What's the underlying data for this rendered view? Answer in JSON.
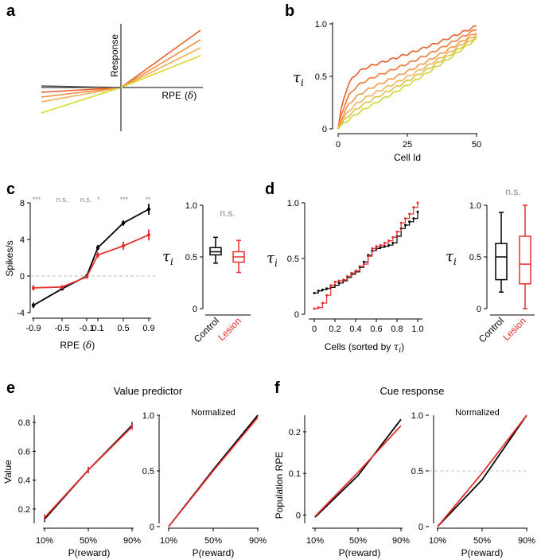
{
  "panels": {
    "a": {
      "letter": "a",
      "ylabel": "Response",
      "xlabel": "RPE",
      "xlabel_sym": "δ",
      "colors": [
        "#e8602c",
        "#f08b3a",
        "#f2ad55",
        "#d9d92e",
        "#555555"
      ]
    },
    "b": {
      "letter": "b",
      "ylabel_sym": "τ",
      "ylabel_sub": "i",
      "xlabel": "Cell Id",
      "xticks": [
        "0",
        "25",
        "50"
      ],
      "yticks": [
        "0",
        "0.5",
        "1.0"
      ],
      "colors": [
        "#e8602c",
        "#ee7a38",
        "#f29a4a",
        "#f2b45c",
        "#d9c446",
        "#cfd73a"
      ]
    },
    "c": {
      "letter": "c",
      "ylabel": "Spikes/s",
      "xlabel": "RPE",
      "xlabel_sym": "δ",
      "xticks": [
        "-0.9",
        "-0.5",
        "-0.1",
        "0.1",
        "0.5",
        "0.9"
      ],
      "yticks": [
        "-4",
        "0",
        "4",
        "8"
      ],
      "sig": [
        "***",
        "n.s.",
        "n.s.",
        "*",
        "***",
        "**"
      ],
      "control_color": "#000000",
      "lesion_color": "#e53030",
      "box": {
        "ylabel_sym": "τ",
        "ylabel_sub": "i",
        "yticks": [
          "0",
          "0.5",
          "1.0"
        ],
        "sig": "n.s.",
        "groups": [
          "Control",
          "Lesion"
        ]
      }
    },
    "d": {
      "letter": "d",
      "ylabel_sym": "τ",
      "ylabel_sub": "i",
      "xlabel_prefix": "Cells (sorted by ",
      "xlabel_sym": "τ",
      "xlabel_sub": "i",
      "xticks": [
        "0",
        "0.2",
        "0.4",
        "0.6",
        "0.8",
        "1.0"
      ],
      "yticks": [
        "0",
        "0.5",
        "1.0"
      ],
      "box": {
        "ylabel_sym": "τ",
        "ylabel_sub": "i",
        "yticks": [
          "0",
          "0.5",
          "1.0"
        ],
        "sig": "n.s.",
        "groups": [
          "Control",
          "Lesion"
        ]
      }
    },
    "e": {
      "letter": "e",
      "title": "Value predictor",
      "ylabel": "Value",
      "xlabel": "P(reward)",
      "xticks": [
        "10%",
        "50%",
        "90%"
      ],
      "yticks": [
        "0.2",
        "0.4",
        "0.6",
        "0.8"
      ],
      "norm_title": "Normalized",
      "norm_yticks": [
        "0",
        "0.5",
        "1.0"
      ]
    },
    "f": {
      "letter": "f",
      "title": "Cue response",
      "ylabel": "Population RPE",
      "xlabel": "P(reward)",
      "xticks": [
        "10%",
        "50%",
        "90%"
      ],
      "yticks": [
        "0",
        "0.1",
        "0.2"
      ],
      "norm_title": "Normalized",
      "norm_yticks": [
        "0",
        "0.5",
        "1.0"
      ]
    }
  },
  "chart_data": [
    {
      "id": "c-main",
      "type": "line",
      "x": [
        -0.9,
        -0.5,
        -0.1,
        0.1,
        0.5,
        0.9
      ],
      "series": [
        {
          "name": "Control",
          "values": [
            -3.2,
            -1.4,
            0.0,
            3.1,
            5.8,
            7.3
          ]
        },
        {
          "name": "Lesion",
          "values": [
            -1.3,
            -1.2,
            -0.1,
            2.3,
            3.3,
            4.5
          ]
        }
      ],
      "ylim": [
        -4,
        8
      ]
    },
    {
      "id": "c-box",
      "type": "box",
      "groups": [
        "Control",
        "Lesion"
      ],
      "stats": [
        {
          "min": 0.44,
          "q1": 0.52,
          "median": 0.55,
          "q3": 0.59,
          "max": 0.69
        },
        {
          "min": 0.35,
          "q1": 0.45,
          "median": 0.5,
          "q3": 0.55,
          "max": 0.66
        }
      ],
      "ylim": [
        0,
        1
      ]
    },
    {
      "id": "d-main",
      "type": "line",
      "x": [
        0.0,
        0.04,
        0.08,
        0.12,
        0.16,
        0.2,
        0.24,
        0.28,
        0.32,
        0.36,
        0.4,
        0.44,
        0.48,
        0.52,
        0.56,
        0.6,
        0.64,
        0.68,
        0.72,
        0.76,
        0.8,
        0.84,
        0.88,
        0.92,
        0.96,
        1.0
      ],
      "series": [
        {
          "name": "Control",
          "values": [
            0.19,
            0.21,
            0.22,
            0.23,
            0.24,
            0.26,
            0.28,
            0.3,
            0.33,
            0.36,
            0.38,
            0.42,
            0.47,
            0.53,
            0.57,
            0.59,
            0.6,
            0.61,
            0.62,
            0.64,
            0.7,
            0.77,
            0.8,
            0.83,
            0.86,
            0.92
          ]
        },
        {
          "name": "Lesion",
          "values": [
            0.05,
            0.06,
            0.1,
            0.17,
            0.26,
            0.29,
            0.3,
            0.31,
            0.34,
            0.37,
            0.39,
            0.43,
            0.45,
            0.52,
            0.59,
            0.61,
            0.62,
            0.64,
            0.66,
            0.69,
            0.74,
            0.82,
            0.86,
            0.9,
            0.96,
            1.0
          ]
        }
      ],
      "ylim": [
        0,
        1
      ]
    },
    {
      "id": "d-box",
      "type": "box",
      "groups": [
        "Control",
        "Lesion"
      ],
      "stats": [
        {
          "min": 0.16,
          "q1": 0.28,
          "median": 0.5,
          "q3": 0.63,
          "max": 0.93
        },
        {
          "min": 0.0,
          "q1": 0.24,
          "median": 0.43,
          "q3": 0.7,
          "max": 1.0
        }
      ],
      "ylim": [
        0,
        1
      ]
    },
    {
      "id": "e-main",
      "type": "line",
      "x": [
        0.1,
        0.5,
        0.9
      ],
      "series": [
        {
          "name": "black",
          "values": [
            0.13,
            0.47,
            0.78
          ]
        },
        {
          "name": "red",
          "values": [
            0.14,
            0.47,
            0.77
          ]
        }
      ],
      "ylim": [
        0.1,
        0.85
      ]
    },
    {
      "id": "e-norm",
      "type": "line",
      "x": [
        0.1,
        0.5,
        0.9
      ],
      "series": [
        {
          "name": "black",
          "values": [
            0.0,
            0.51,
            1.0
          ]
        },
        {
          "name": "red",
          "values": [
            0.0,
            0.5,
            0.98
          ]
        }
      ],
      "ylim": [
        0,
        1
      ]
    },
    {
      "id": "f-main",
      "type": "line",
      "x": [
        0.1,
        0.5,
        0.9
      ],
      "series": [
        {
          "name": "black",
          "values": [
            -0.005,
            0.095,
            0.23
          ]
        },
        {
          "name": "red",
          "values": [
            -0.003,
            0.103,
            0.215
          ]
        }
      ],
      "ylim": [
        -0.02,
        0.24
      ]
    },
    {
      "id": "f-norm",
      "type": "line",
      "x": [
        0.1,
        0.5,
        0.9
      ],
      "series": [
        {
          "name": "black",
          "values": [
            0.0,
            0.42,
            1.0
          ]
        },
        {
          "name": "red",
          "values": [
            0.0,
            0.48,
            1.0
          ]
        }
      ],
      "ylim": [
        0,
        1
      ],
      "hline": 0.5
    }
  ]
}
